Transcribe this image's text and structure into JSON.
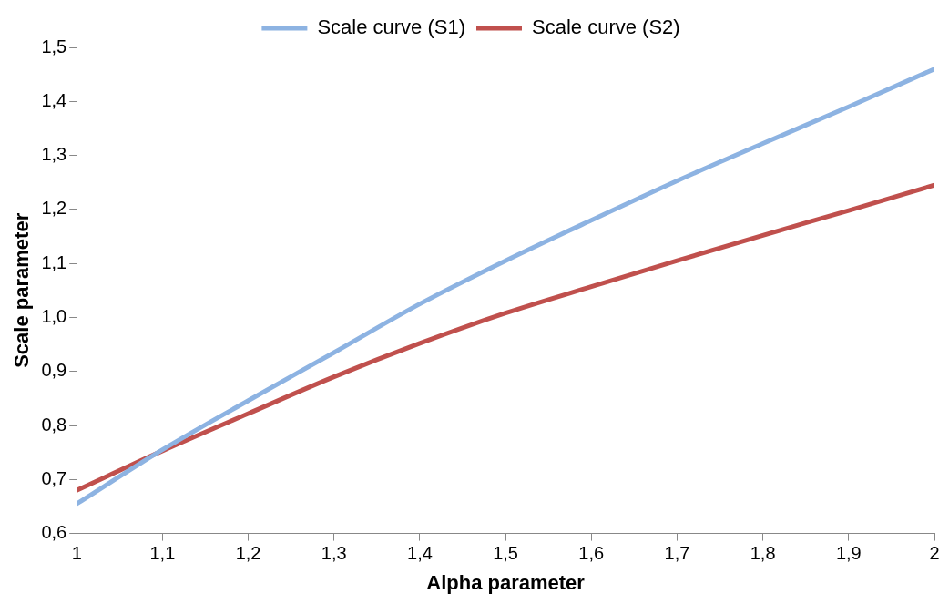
{
  "chart_data": {
    "type": "line",
    "xlabel": "Alpha parameter",
    "ylabel": "Scale parameter",
    "x": [
      1,
      1.1,
      1.2,
      1.3,
      1.4,
      1.5,
      1.6,
      1.7,
      1.8,
      1.9,
      2
    ],
    "series": [
      {
        "name": "Scale curve (S1)",
        "color": "#8db3e2",
        "values": [
          0.655,
          0.755,
          0.846,
          0.935,
          1.025,
          1.105,
          1.18,
          1.253,
          1.322,
          1.39,
          1.46
        ]
      },
      {
        "name": "Scale curve (S2)",
        "color": "#c0504d",
        "values": [
          0.68,
          0.753,
          0.822,
          0.89,
          0.952,
          1.008,
          1.057,
          1.105,
          1.152,
          1.198,
          1.245
        ]
      }
    ],
    "xlim": [
      1,
      2
    ],
    "xticks": [
      1,
      {
        "value": 1.1,
        "label": "1,1"
      },
      {
        "value": 1.2,
        "label": "1,2"
      },
      {
        "value": 1.3,
        "label": "1,3"
      },
      {
        "value": 1.4,
        "label": "1,4"
      },
      {
        "value": 1.5,
        "label": "1,5"
      },
      {
        "value": 1.6,
        "label": "1,6"
      },
      {
        "value": 1.7,
        "label": "1,7"
      },
      {
        "value": 1.8,
        "label": "1,8"
      },
      {
        "value": 1.9,
        "label": "1,9"
      },
      2
    ],
    "ylim": [
      0.6,
      1.5
    ],
    "yticks": [
      {
        "value": 0.6,
        "label": "0,6"
      },
      {
        "value": 0.7,
        "label": "0,7"
      },
      {
        "value": 0.8,
        "label": "0,8"
      },
      {
        "value": 0.9,
        "label": "0,9"
      },
      {
        "value": 1,
        "label": "1,0"
      },
      {
        "value": 1.1,
        "label": "1,1"
      },
      {
        "value": 1.2,
        "label": "1,2"
      },
      {
        "value": 1.3,
        "label": "1,3"
      },
      {
        "value": 1.4,
        "label": "1,4"
      },
      {
        "value": 1.5,
        "label": "1,5"
      }
    ],
    "grid": false,
    "legend": "top",
    "marker": "none",
    "line_style": "solid"
  }
}
